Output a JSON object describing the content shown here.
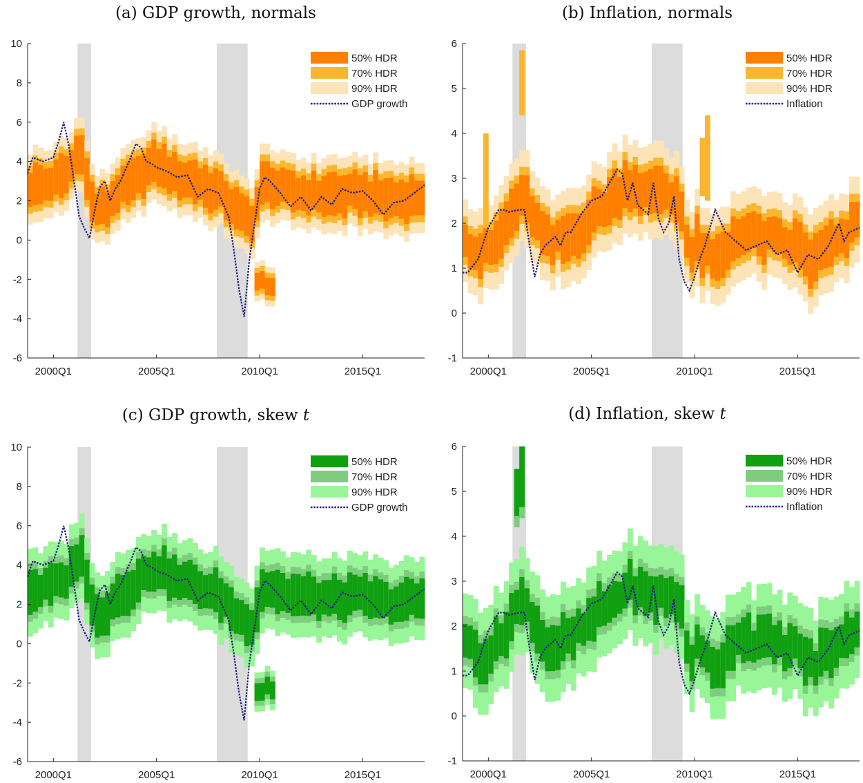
{
  "colors": {
    "recession": "#dcdcdc",
    "normals": {
      "hdr50": "#ff8000",
      "hdr70": "#fbb62e",
      "hdr90": "#fde3b8"
    },
    "skewt": {
      "hdr50": "#10a010",
      "hdr70": "#7fcc7f",
      "hdr90": "#98f598"
    },
    "line": "#1a1a80"
  },
  "recessions": [
    [
      2001.17,
      2001.83
    ],
    [
      2007.92,
      2009.42
    ]
  ],
  "panels": [
    {
      "title": "(a) GDP growth, normals",
      "scheme": "normals",
      "series": "gdp",
      "ylim": [
        -6,
        10
      ],
      "yticks": [
        -6,
        -4,
        -2,
        0,
        2,
        4,
        6,
        8,
        10
      ],
      "legend": {
        "hdr50": "50% HDR",
        "hdr70": "70% HDR",
        "hdr90": "90% HDR",
        "line": "GDP growth"
      }
    },
    {
      "title": "(b) Inflation, normals",
      "scheme": "normals",
      "series": "inflation",
      "ylim": [
        -1,
        6
      ],
      "yticks": [
        -1,
        0,
        1,
        2,
        3,
        4,
        5,
        6
      ],
      "legend": {
        "hdr50": "50% HDR",
        "hdr70": "70% HDR",
        "hdr90": "90% HDR",
        "line": "Inflation"
      }
    },
    {
      "title": "(c) GDP growth, skew ",
      "title_italic": "t",
      "scheme": "skewt",
      "series": "gdp",
      "ylim": [
        -6,
        10
      ],
      "yticks": [
        -6,
        -4,
        -2,
        0,
        2,
        4,
        6,
        8,
        10
      ],
      "legend": {
        "hdr50": "50% HDR",
        "hdr70": "70% HDR",
        "hdr90": "90% HDR",
        "line": "GDP growth"
      }
    },
    {
      "title": "(d) Inflation, skew ",
      "title_italic": "t",
      "scheme": "skewt",
      "series": "inflation",
      "ylim": [
        -1,
        6
      ],
      "yticks": [
        -1,
        0,
        1,
        2,
        3,
        4,
        5,
        6
      ],
      "legend": {
        "hdr50": "50% HDR",
        "hdr70": "70% HDR",
        "hdr90": "90% HDR",
        "line": "Inflation"
      }
    }
  ],
  "chart_data": {
    "type": "area",
    "xlim": [
      1998.75,
      2018.0
    ],
    "x_ticks": [
      {
        "x": 2000.0,
        "label": "2000Q1"
      },
      {
        "x": 2005.0,
        "label": "2005Q1"
      },
      {
        "x": 2010.0,
        "label": "2010Q1"
      },
      {
        "x": 2015.0,
        "label": "2015Q1"
      }
    ],
    "gdp": {
      "name": "GDP growth",
      "anchors_x": [
        1998.75,
        1999.0,
        1999.5,
        2000.0,
        2000.25,
        2000.5,
        2000.75,
        2001.0,
        2001.25,
        2001.5,
        2001.75,
        2002.0,
        2002.25,
        2002.5,
        2002.75,
        2003.0,
        2003.25,
        2003.5,
        2003.75,
        2004.0,
        2004.25,
        2004.5,
        2004.75,
        2005.0,
        2005.5,
        2006.0,
        2006.5,
        2007.0,
        2007.5,
        2008.0,
        2008.25,
        2008.5,
        2008.75,
        2009.0,
        2009.25,
        2009.5,
        2009.75,
        2010.0,
        2010.25,
        2010.5,
        2011.0,
        2011.5,
        2012.0,
        2012.5,
        2013.0,
        2013.5,
        2014.0,
        2014.5,
        2015.0,
        2015.5,
        2016.0,
        2016.5,
        2017.0,
        2017.5,
        2018.0
      ],
      "anchors_y": [
        3.4,
        4.2,
        4.0,
        4.2,
        5.0,
        6.0,
        4.8,
        3.0,
        1.2,
        0.6,
        0.1,
        1.5,
        2.7,
        3.0,
        2.0,
        2.6,
        3.0,
        3.6,
        4.2,
        4.9,
        4.7,
        4.0,
        3.9,
        3.7,
        3.5,
        3.2,
        3.3,
        2.2,
        2.6,
        2.4,
        1.8,
        1.2,
        -0.5,
        -2.5,
        -3.9,
        -1.0,
        0.8,
        2.6,
        3.2,
        3.0,
        2.4,
        1.7,
        2.2,
        1.5,
        2.2,
        1.8,
        2.6,
        2.4,
        2.5,
        2.0,
        1.3,
        1.9,
        2.0,
        2.4,
        2.8
      ],
      "band_center_x": [
        1998.75,
        1999.5,
        2000.0,
        2000.5,
        2000.8,
        2001.0,
        2001.4,
        2001.75,
        2002.0,
        2002.6,
        2003.0,
        2003.5,
        2004.0,
        2004.5,
        2005.0,
        2006.0,
        2007.0,
        2007.5,
        2008.0,
        2008.5,
        2009.0,
        2009.25,
        2009.5,
        2009.75,
        2010.0,
        2010.5,
        2011.0,
        2012.0,
        2013.0,
        2014.0,
        2015.0,
        2016.0,
        2017.0,
        2018.0
      ],
      "band_center_y": [
        2.7,
        2.8,
        3.0,
        3.2,
        3.5,
        4.2,
        4.6,
        2.2,
        1.6,
        1.6,
        2.4,
        2.7,
        3.0,
        3.6,
        3.9,
        3.2,
        3.0,
        2.6,
        2.5,
        2.0,
        1.3,
        1.2,
        1.1,
        1.0,
        2.7,
        2.9,
        2.6,
        2.4,
        2.3,
        2.3,
        2.4,
        2.1,
        2.1,
        2.3
      ],
      "lower_tail": {
        "x_start": 2009.75,
        "x_end": 2010.5,
        "center_y": -2.2
      }
    },
    "inflation": {
      "name": "Inflation",
      "anchors_x": [
        1998.75,
        1999.0,
        1999.5,
        2000.0,
        2000.5,
        2000.75,
        2001.0,
        2001.5,
        2001.75,
        2002.0,
        2002.25,
        2002.5,
        2002.75,
        2003.0,
        2003.25,
        2003.5,
        2003.75,
        2004.0,
        2004.5,
        2005.0,
        2005.5,
        2006.0,
        2006.25,
        2006.5,
        2006.75,
        2007.0,
        2007.25,
        2007.5,
        2007.75,
        2008.0,
        2008.25,
        2008.5,
        2008.75,
        2009.0,
        2009.25,
        2009.5,
        2009.75,
        2010.0,
        2010.25,
        2010.5,
        2011.0,
        2011.5,
        2012.0,
        2012.5,
        2013.0,
        2013.5,
        2014.0,
        2014.5,
        2015.0,
        2015.5,
        2016.0,
        2016.5,
        2017.0,
        2017.25,
        2017.5,
        2018.0
      ],
      "anchors_y": [
        0.9,
        0.9,
        1.2,
        1.9,
        2.3,
        2.3,
        2.25,
        2.3,
        2.3,
        1.5,
        0.8,
        1.3,
        1.5,
        1.6,
        1.7,
        1.5,
        1.8,
        1.8,
        2.2,
        2.5,
        2.6,
        3.0,
        3.2,
        3.1,
        2.5,
        2.9,
        2.4,
        2.3,
        2.2,
        2.9,
        2.1,
        1.8,
        2.0,
        2.6,
        1.2,
        0.7,
        0.5,
        0.8,
        1.2,
        1.5,
        2.3,
        1.8,
        1.6,
        1.4,
        1.5,
        1.6,
        1.3,
        1.4,
        0.9,
        1.3,
        1.2,
        1.5,
        2.0,
        1.6,
        1.8,
        1.9
      ],
      "band_center_x": [
        1998.75,
        1999.25,
        1999.75,
        2000.5,
        2001.0,
        2001.5,
        2002.0,
        2002.5,
        2003.0,
        2004.0,
        2005.0,
        2005.5,
        2006.0,
        2006.5,
        2007.0,
        2007.5,
        2008.0,
        2008.5,
        2009.0,
        2009.25,
        2009.5,
        2009.75,
        2010.0,
        2010.5,
        2011.0,
        2011.5,
        2012.0,
        2013.0,
        2014.0,
        2015.0,
        2015.75,
        2016.5,
        2017.0,
        2017.5,
        2018.0
      ],
      "band_center_y": [
        1.9,
        1.4,
        1.3,
        1.6,
        2.1,
        2.5,
        2.4,
        1.8,
        1.5,
        1.7,
        2.1,
        2.4,
        2.5,
        2.8,
        2.9,
        2.7,
        2.6,
        2.8,
        2.5,
        2.6,
        2.2,
        1.0,
        1.6,
        1.3,
        1.1,
        1.3,
        1.8,
        1.7,
        1.6,
        1.5,
        1.1,
        1.5,
        1.5,
        1.8,
        2.1
      ],
      "spikes": [
        {
          "panel": "normals",
          "x": 1999.75,
          "y_low": 2.0,
          "y_high": 4.0
        },
        {
          "panel": "normals",
          "x": 2001.5,
          "y_low": 4.4,
          "y_high": 5.85
        },
        {
          "panel": "normals",
          "x": 2010.25,
          "y_low": 2.6,
          "y_high": 3.9
        },
        {
          "panel": "normals",
          "x": 2010.5,
          "y_low": 2.5,
          "y_high": 4.4
        },
        {
          "panel": "skewt",
          "x": 2001.25,
          "y_low": 4.2,
          "y_high": 5.5
        },
        {
          "panel": "skewt",
          "x": 2001.5,
          "y_low": 4.4,
          "y_high": 6.0
        }
      ]
    }
  }
}
